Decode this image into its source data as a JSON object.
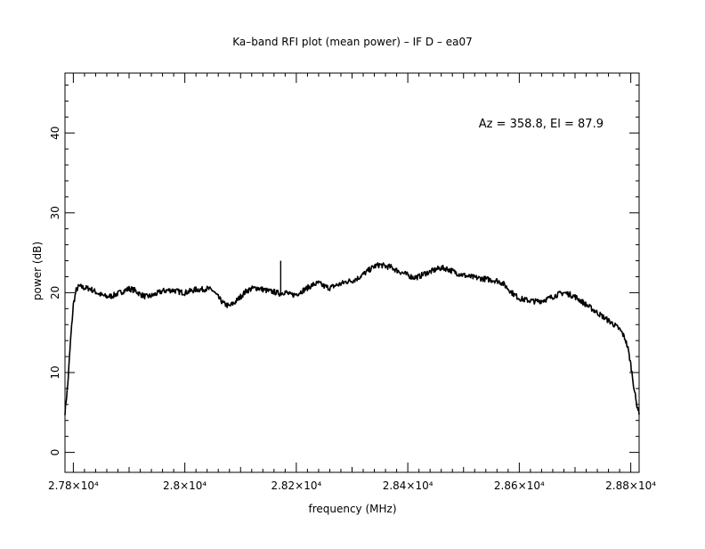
{
  "chart_data": {
    "type": "line",
    "title": "Ka–band RFI plot (mean power) – IF D – ea07",
    "xlabel": "frequency (MHz)",
    "ylabel": "power (dB)",
    "annotation": "Az = 358.8, El = 87.9",
    "xlim": [
      27785,
      28815
    ],
    "ylim": [
      -2.5,
      47.5
    ],
    "x_ticks": [
      {
        "value": 27800,
        "label": "2.78×10⁴"
      },
      {
        "value": 28000,
        "label": "2.8×10⁴"
      },
      {
        "value": 28200,
        "label": "2.82×10⁴"
      },
      {
        "value": 28400,
        "label": "2.84×10⁴"
      },
      {
        "value": 28600,
        "label": "2.86×10⁴"
      },
      {
        "value": 28800,
        "label": "2.88×10⁴"
      }
    ],
    "y_ticks": [
      {
        "value": 0,
        "label": "0"
      },
      {
        "value": 10,
        "label": "10"
      },
      {
        "value": 20,
        "label": "20"
      },
      {
        "value": 30,
        "label": "30"
      },
      {
        "value": 40,
        "label": "40"
      }
    ],
    "grid": false,
    "legend": "none",
    "series": [
      {
        "color": "#000000",
        "x": [
          27785,
          27790,
          27795,
          27800,
          27805,
          27810,
          27815,
          27820,
          27830,
          27840,
          27850,
          27860,
          27870,
          27880,
          27890,
          27900,
          27910,
          27920,
          27930,
          27940,
          27950,
          27960,
          27970,
          27980,
          27990,
          28000,
          28010,
          28020,
          28030,
          28040,
          28050,
          28060,
          28070,
          28080,
          28090,
          28100,
          28110,
          28120,
          28130,
          28140,
          28150,
          28160,
          28170,
          28180,
          28190,
          28200,
          28210,
          28220,
          28230,
          28240,
          28250,
          28260,
          28270,
          28280,
          28290,
          28300,
          28310,
          28320,
          28330,
          28340,
          28350,
          28360,
          28370,
          28380,
          28390,
          28400,
          28410,
          28420,
          28430,
          28440,
          28450,
          28460,
          28470,
          28480,
          28490,
          28500,
          28510,
          28520,
          28530,
          28540,
          28550,
          28560,
          28570,
          28580,
          28590,
          28600,
          28610,
          28620,
          28630,
          28640,
          28650,
          28660,
          28670,
          28680,
          28690,
          28700,
          28710,
          28720,
          28730,
          28740,
          28750,
          28760,
          28770,
          28775,
          28780,
          28785,
          28790,
          28795,
          28800,
          28805,
          28810,
          28815
        ],
        "y": [
          5,
          8.5,
          14,
          18.5,
          20.3,
          20.8,
          20.7,
          20.6,
          20.5,
          20.1,
          19.7,
          19.5,
          19.6,
          19.9,
          20.2,
          20.5,
          20.3,
          19.8,
          19.5,
          19.6,
          19.9,
          20.2,
          20.3,
          20.3,
          20.1,
          20.0,
          20.2,
          20.4,
          20.4,
          20.5,
          20.3,
          19.4,
          18.6,
          18.3,
          18.8,
          19.5,
          20.2,
          20.5,
          20.6,
          20.4,
          20.2,
          20.1,
          19.9,
          20.1,
          19.7,
          19.8,
          20.2,
          20.6,
          21.0,
          21.2,
          20.8,
          20.6,
          20.9,
          21.1,
          21.4,
          21.5,
          21.8,
          22.3,
          22.8,
          23.3,
          23.5,
          23.3,
          23.2,
          22.8,
          22.5,
          22.2,
          21.9,
          22.0,
          22.4,
          22.6,
          22.9,
          23.1,
          23.0,
          22.7,
          22.4,
          22.2,
          22.0,
          21.9,
          21.8,
          21.7,
          21.6,
          21.5,
          21.2,
          20.5,
          19.8,
          19.3,
          19.1,
          19.0,
          18.9,
          19.0,
          19.2,
          19.5,
          19.8,
          20.0,
          19.8,
          19.5,
          19.0,
          18.5,
          18.0,
          17.5,
          17.0,
          16.5,
          16.0,
          15.7,
          15.4,
          14.9,
          14.2,
          13.0,
          11.0,
          8.5,
          6.2,
          5.0
        ],
        "spike": {
          "x": 28172,
          "y": 24.0
        }
      }
    ]
  }
}
